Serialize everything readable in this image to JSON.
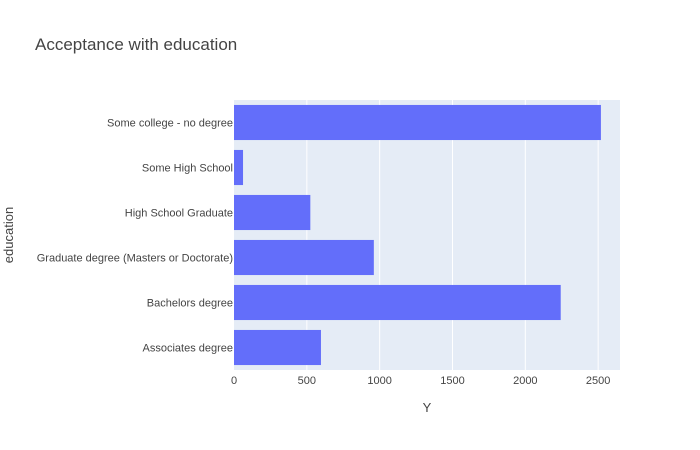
{
  "chart_data": {
    "type": "bar",
    "orientation": "horizontal",
    "title": "Acceptance with education",
    "xlabel": "Y",
    "ylabel": "education",
    "categories": [
      "Associates degree",
      "Bachelors degree",
      "Graduate degree (Masters or Doctorate)",
      "High School Graduate",
      "Some High School",
      "Some college - no degree"
    ],
    "values": [
      597,
      2243,
      960,
      524,
      62,
      2519
    ],
    "xlim": [
      0,
      2650
    ],
    "xticks": [
      0,
      500,
      1000,
      1500,
      2000,
      2500
    ],
    "grid": true,
    "bar_color": "#636efa",
    "plot_bg": "#e5ecf6",
    "legend": "none"
  }
}
